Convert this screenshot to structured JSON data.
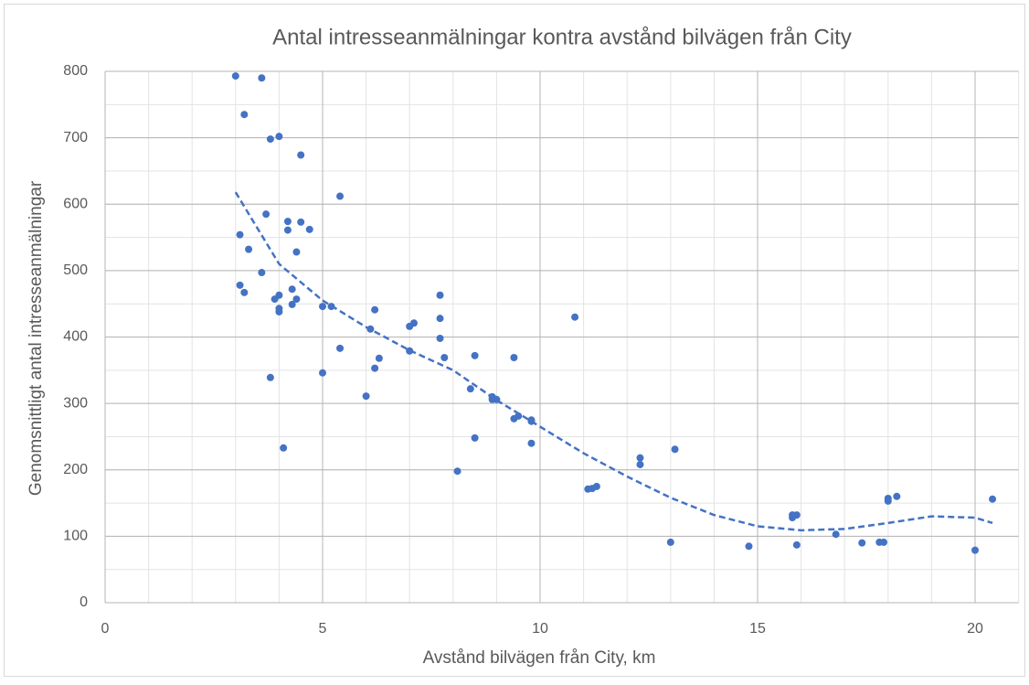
{
  "chart_data": {
    "type": "scatter",
    "title": "Antal intresseanmälningar kontra avstånd bilvägen från City",
    "x_label": "Avstånd bilvägen från City, km",
    "y_label": "Genomsnittligt antal intresseanmälningar",
    "xlim": [
      0,
      21
    ],
    "ylim": [
      0,
      800
    ],
    "xticks": [
      0,
      5,
      10,
      15,
      20
    ],
    "yticks": [
      0,
      100,
      200,
      300,
      400,
      500,
      600,
      700,
      800
    ],
    "grid": true,
    "minor_xstep": 1,
    "minor_ystep": 50,
    "series": [
      {
        "color": "#4472c4",
        "x": [
          3.0,
          3.6,
          3.2,
          3.8,
          4.0,
          4.5,
          5.4,
          3.7,
          4.2,
          4.5,
          4.2,
          4.7,
          3.1,
          3.3,
          4.4,
          3.6,
          3.1,
          3.2,
          4.3,
          4.0,
          3.9,
          4.4,
          4.0,
          4.3,
          4.0,
          5.0,
          5.2,
          6.2,
          7.7,
          7.7,
          10.8,
          7.1,
          7.0,
          6.1,
          7.7,
          5.4,
          7.0,
          7.8,
          8.5,
          9.4,
          6.3,
          6.2,
          5.0,
          3.8,
          8.4,
          6.0,
          8.9,
          9.0,
          8.9,
          9.8,
          9.4,
          9.5,
          9.8,
          8.5,
          9.8,
          4.1,
          13.1,
          12.3,
          12.3,
          8.1,
          11.3,
          11.2,
          11.1,
          13.0,
          14.8,
          15.8,
          15.9,
          15.8,
          15.9,
          16.8,
          17.4,
          17.8,
          17.9,
          18.0,
          18.0,
          18.2,
          20.0,
          20.4
        ],
        "values": [
          793,
          790,
          735,
          698,
          702,
          674,
          612,
          585,
          574,
          573,
          561,
          562,
          554,
          532,
          528,
          497,
          478,
          467,
          472,
          463,
          457,
          457,
          443,
          449,
          438,
          446,
          446,
          441,
          463,
          428,
          430,
          421,
          416,
          412,
          398,
          383,
          379,
          369,
          372,
          369,
          368,
          353,
          346,
          339,
          322,
          311,
          310,
          306,
          306,
          275,
          277,
          281,
          273,
          248,
          240,
          233,
          231,
          218,
          208,
          198,
          175,
          172,
          171,
          91,
          85,
          132,
          132,
          128,
          87,
          103,
          90,
          91,
          91,
          157,
          153,
          160,
          79,
          156
        ]
      }
    ],
    "trendline": {
      "color": "#4472c4",
      "dashed": true,
      "x": [
        3,
        4,
        5,
        6,
        7,
        8,
        9,
        10,
        11,
        12,
        13,
        14,
        15,
        16,
        17,
        18,
        19,
        20,
        20.4
      ],
      "values": [
        618,
        510,
        455,
        415,
        380,
        350,
        305,
        265,
        225,
        190,
        158,
        132,
        115,
        109,
        111,
        120,
        130,
        128,
        120
      ]
    }
  }
}
